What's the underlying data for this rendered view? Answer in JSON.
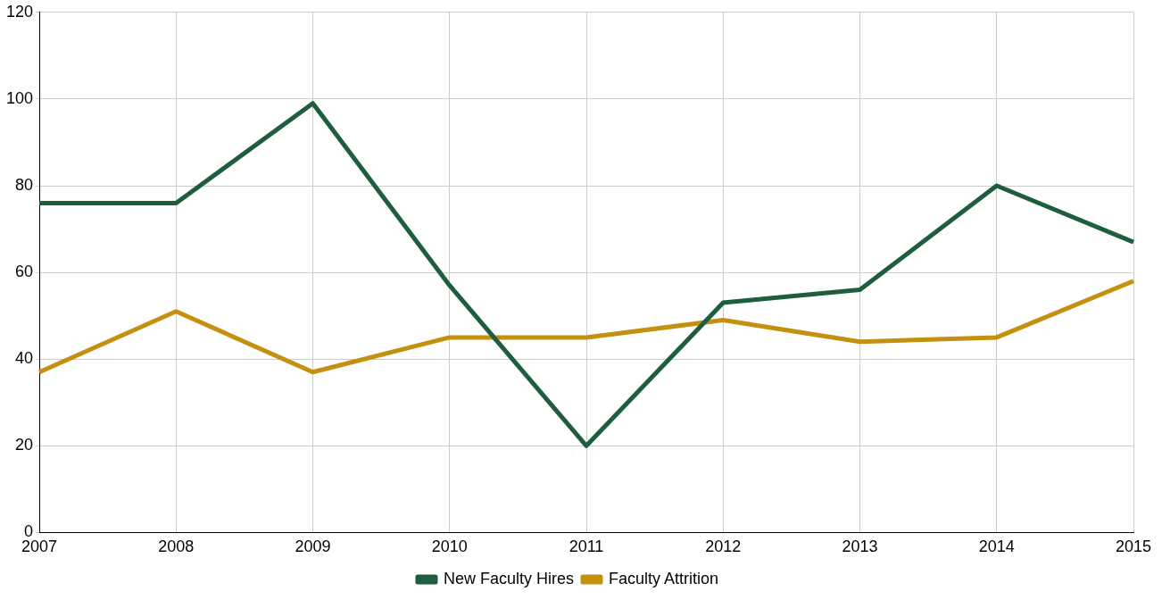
{
  "chart_data": {
    "type": "line",
    "categories": [
      "2007",
      "2008",
      "2009",
      "2010",
      "2011",
      "2012",
      "2013",
      "2014",
      "2015"
    ],
    "series": [
      {
        "name": "New Faculty Hires",
        "color": "#1e5e3e",
        "values": [
          76,
          76,
          99,
          57,
          20,
          53,
          56,
          80,
          67
        ]
      },
      {
        "name": "Faculty Attrition",
        "color": "#c4900f",
        "values": [
          37,
          51,
          37,
          45,
          45,
          49,
          44,
          45,
          58
        ]
      }
    ],
    "ylim": [
      0,
      120
    ],
    "yticks": [
      0,
      20,
      40,
      60,
      80,
      100,
      120
    ],
    "grid": true,
    "legend": "bottom",
    "marker": "none",
    "line_style": "solid"
  }
}
